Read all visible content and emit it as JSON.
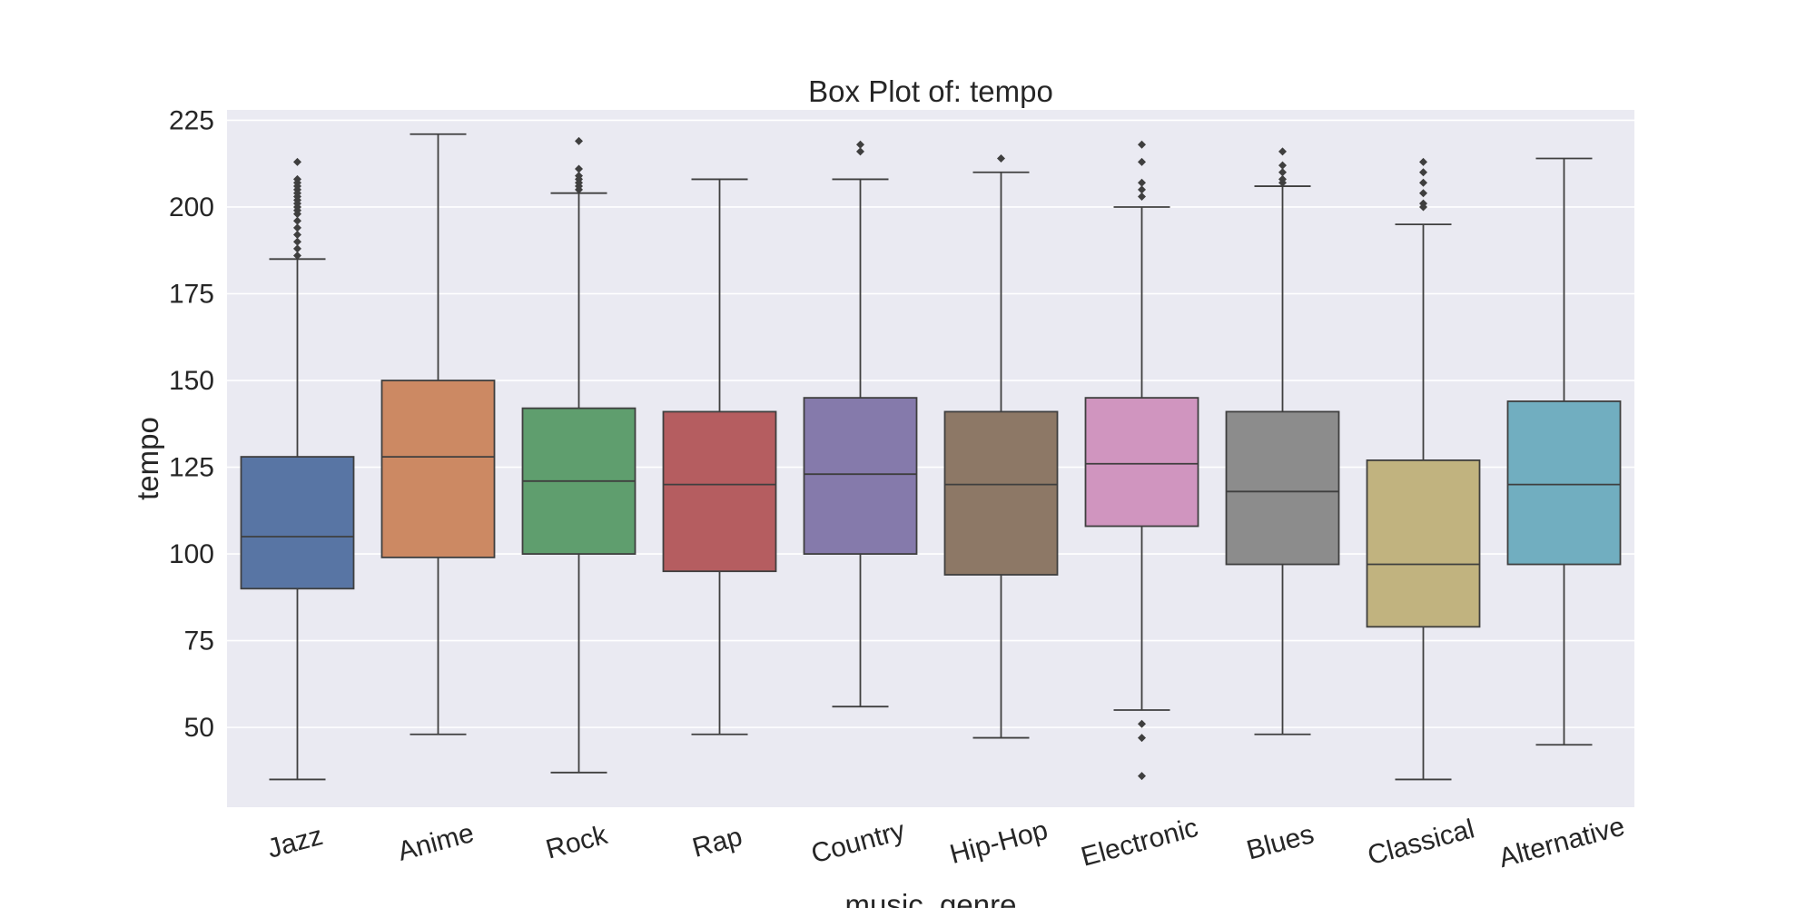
{
  "chart_data": {
    "type": "box",
    "title": "Box Plot of: tempo",
    "xlabel": "music_genre",
    "ylabel": "tempo",
    "ylim": [
      27,
      228
    ],
    "yticks": [
      50,
      75,
      100,
      125,
      150,
      175,
      200,
      225
    ],
    "grid": true,
    "legend": "none",
    "background": "#eaeaf2",
    "grid_color": "#ffffff",
    "line_color": "#3f3f3f",
    "categories": [
      "Jazz",
      "Anime",
      "Rock",
      "Rap",
      "Country",
      "Hip-Hop",
      "Electronic",
      "Blues",
      "Classical",
      "Alternative"
    ],
    "colors": [
      "#5875a4",
      "#cc8963",
      "#5f9e6e",
      "#b55d60",
      "#857aab",
      "#8d7866",
      "#d095bf",
      "#8c8c8c",
      "#c1b37f",
      "#71aec0"
    ],
    "boxes": [
      {
        "whisker_low": 35,
        "q1": 90,
        "median": 105,
        "q3": 128,
        "whisker_high": 185,
        "outliers": [
          186,
          188,
          190,
          192,
          194,
          196,
          198,
          199,
          200,
          201,
          202,
          203,
          204,
          205,
          206,
          207,
          208,
          213
        ]
      },
      {
        "whisker_low": 48,
        "q1": 99,
        "median": 128,
        "q3": 150,
        "whisker_high": 221,
        "outliers": []
      },
      {
        "whisker_low": 37,
        "q1": 100,
        "median": 121,
        "q3": 142,
        "whisker_high": 204,
        "outliers": [
          205,
          206,
          207,
          208,
          209,
          211,
          219
        ]
      },
      {
        "whisker_low": 48,
        "q1": 95,
        "median": 120,
        "q3": 141,
        "whisker_high": 208,
        "outliers": []
      },
      {
        "whisker_low": 56,
        "q1": 100,
        "median": 123,
        "q3": 145,
        "whisker_high": 208,
        "outliers": [
          216,
          218
        ]
      },
      {
        "whisker_low": 47,
        "q1": 94,
        "median": 120,
        "q3": 141,
        "whisker_high": 210,
        "outliers": [
          214
        ]
      },
      {
        "whisker_low": 55,
        "q1": 108,
        "median": 126,
        "q3": 145,
        "whisker_high": 200,
        "outliers": [
          36,
          47,
          51,
          203,
          205,
          207,
          213,
          218
        ]
      },
      {
        "whisker_low": 48,
        "q1": 97,
        "median": 118,
        "q3": 141,
        "whisker_high": 206,
        "outliers": [
          207,
          208,
          210,
          212,
          216
        ]
      },
      {
        "whisker_low": 35,
        "q1": 79,
        "median": 97,
        "q3": 127,
        "whisker_high": 195,
        "outliers": [
          200,
          201,
          204,
          207,
          210,
          213
        ]
      },
      {
        "whisker_low": 45,
        "q1": 97,
        "median": 120,
        "q3": 144,
        "whisker_high": 214,
        "outliers": []
      }
    ]
  }
}
